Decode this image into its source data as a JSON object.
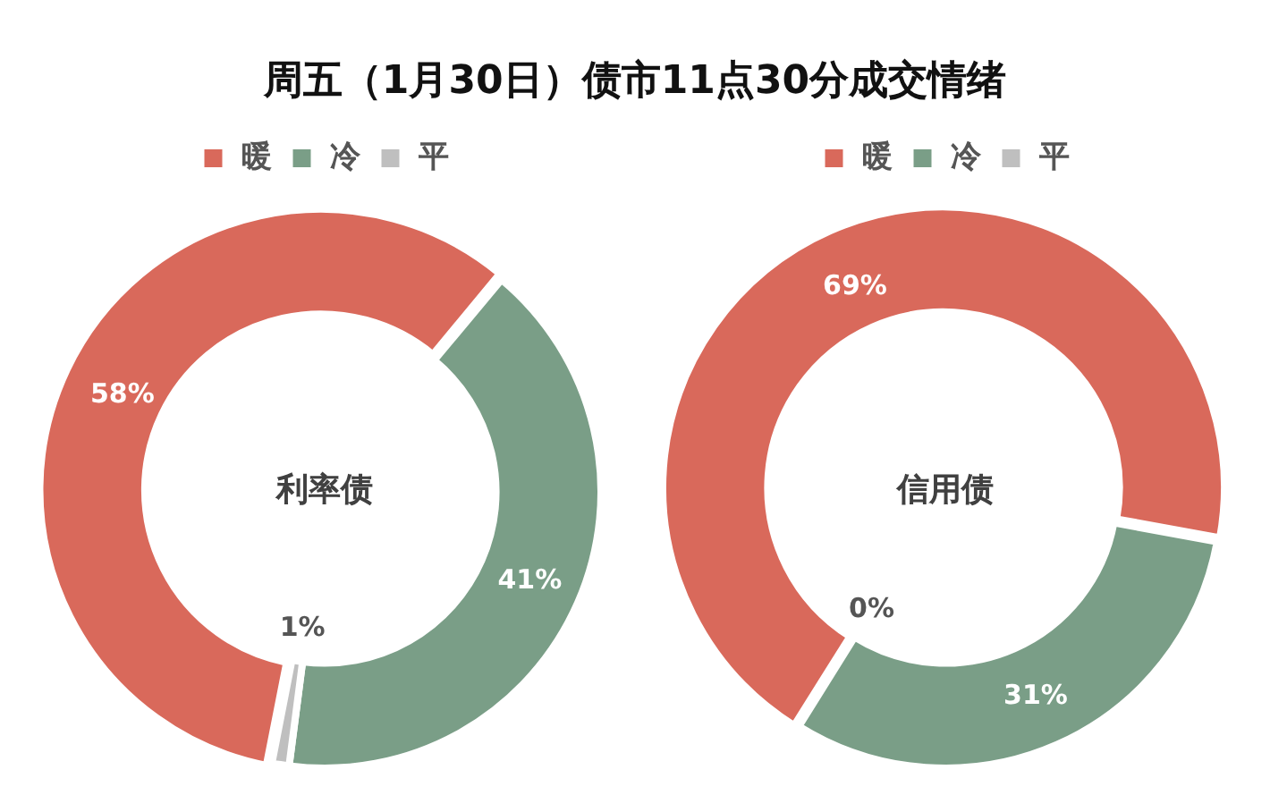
{
  "chart_data": [
    {
      "type": "donut",
      "title": "周五（1月30日）债市11点30分成交情绪",
      "categories": [
        "暖",
        "冷",
        "平"
      ],
      "values": [
        58,
        41,
        1
      ],
      "value_labels": [
        "58%",
        "41%",
        "1%"
      ],
      "colors": [
        "#d9695b",
        "#7a9e87",
        "#bfbfbf"
      ],
      "legend": "top",
      "annotations": [
        "利率债"
      ]
    },
    {
      "type": "donut",
      "categories": [
        "暖",
        "冷",
        "平"
      ],
      "values": [
        69,
        31,
        0
      ],
      "value_labels": [
        "69%",
        "31%",
        "0%"
      ],
      "colors": [
        "#d9695b",
        "#7a9e87",
        "#bfbfbf"
      ],
      "legend": "top",
      "annotations": [
        "信用债"
      ]
    }
  ]
}
